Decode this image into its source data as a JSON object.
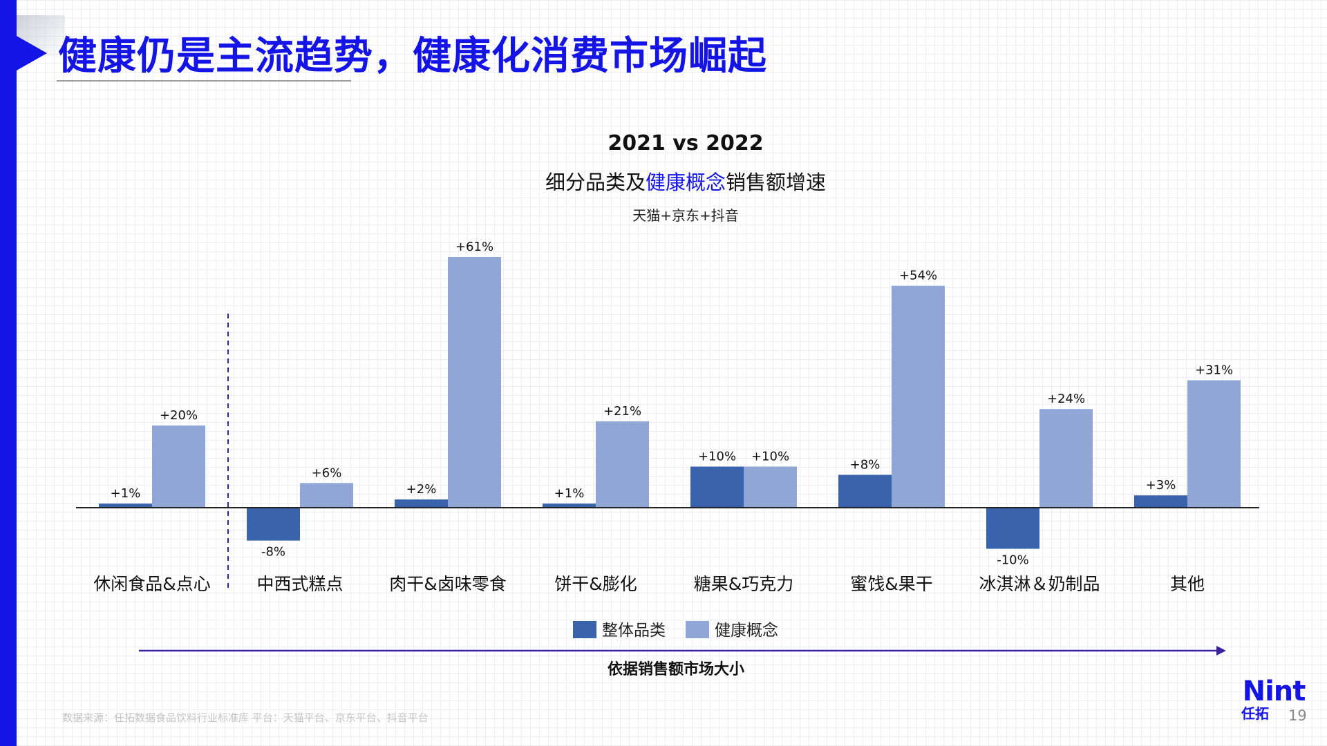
{
  "page": {
    "title": "健康仍是主流趋势，健康化消费市场崛起",
    "footnote": "数据来源：任拓数据食品饮料行业标准库  平台：天猫平台、京东平台、抖音平台",
    "page_number": "19",
    "logo": {
      "mark": "Nint",
      "sub": "任拓"
    },
    "market_note": "依据销售额市场大小"
  },
  "colors": {
    "brand": "#1414e6",
    "series_overall": "#3a63ad",
    "series_health": "#8fa6d6",
    "market_arrow": "#3a1fa0"
  },
  "chart_data": {
    "type": "bar",
    "title": "2021 vs 2022",
    "subtitle": {
      "pre": "细分品类及",
      "highlight": "健康概念",
      "post": "销售额增速"
    },
    "source": "天猫+京东+抖音",
    "xlabel": "",
    "ylabel": "",
    "categories": [
      "休闲食品&点心",
      "中西式糕点",
      "肉干&卤味零食",
      "饼干&膨化",
      "糖果&巧克力",
      "蜜饯&果干",
      "冰淇淋＆奶制品",
      "其他"
    ],
    "series": [
      {
        "name": "整体品类",
        "values": [
          1,
          -8,
          2,
          1,
          10,
          8,
          -10,
          3
        ],
        "labels": [
          "+1%",
          "-8%",
          "+2%",
          "+1%",
          "+10%",
          "+8%",
          "-10%",
          "+3%"
        ]
      },
      {
        "name": "健康概念",
        "values": [
          20,
          6,
          61,
          21,
          10,
          54,
          24,
          31
        ],
        "labels": [
          "+20%",
          "+6%",
          "+61%",
          "+21%",
          "+10%",
          "+54%",
          "+24%",
          "+31%"
        ]
      }
    ],
    "unit": "%",
    "ylim": [
      -12,
      63
    ],
    "grid": false,
    "legend": "bottom-center",
    "divider_after_category": 0
  }
}
